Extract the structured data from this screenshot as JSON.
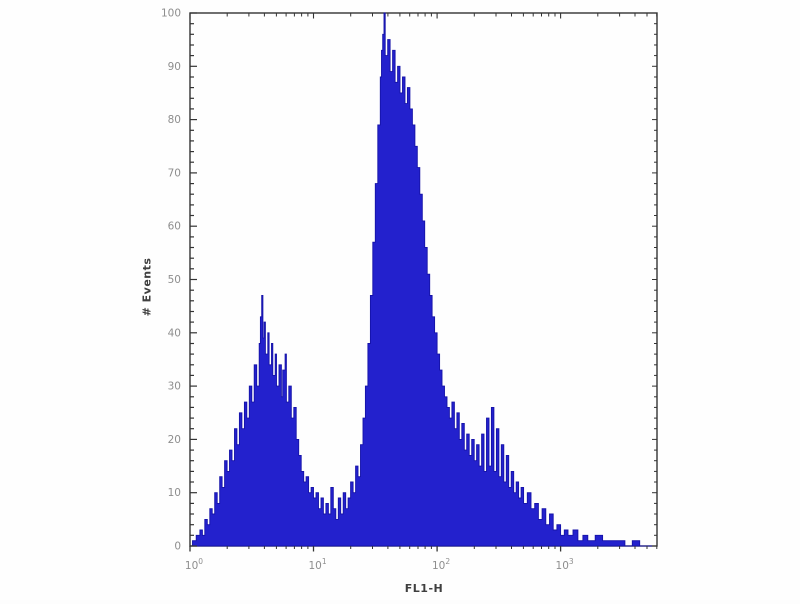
{
  "chart_data": {
    "type": "area",
    "subtype": "flow-cytometry-histogram",
    "title": "",
    "xlabel": "FL1-H",
    "ylabel": "# Events",
    "x_scale": "log",
    "x_range_decades": [
      0,
      3.78
    ],
    "x_ticks": [
      {
        "base": "10",
        "exp": "0",
        "decade": 0
      },
      {
        "base": "10",
        "exp": "1",
        "decade": 1
      },
      {
        "base": "10",
        "exp": "2",
        "decade": 2
      },
      {
        "base": "10",
        "exp": "3",
        "decade": 3
      }
    ],
    "ylim": [
      0,
      100
    ],
    "y_ticks": [
      0,
      10,
      20,
      30,
      40,
      50,
      60,
      70,
      80,
      90,
      100
    ],
    "y_minor_step": 2,
    "legend": null,
    "grid": false,
    "colors": {
      "fill": "#2321cd",
      "stroke": "#1512a8",
      "axis": "#333333",
      "tick_label": "#8e8e8e",
      "axis_title": "#3f3f3f",
      "background": "#fefefe"
    },
    "series": [
      {
        "name": "events",
        "peaks_note": "left peak ~3.8e0 height ~47, main peak ~3.7e1 height ~100 (spike), shoulder ~2.5e2 height ~25",
        "points": [
          [
            0.0,
            0
          ],
          [
            0.02,
            1
          ],
          [
            0.05,
            2
          ],
          [
            0.08,
            3
          ],
          [
            0.1,
            2
          ],
          [
            0.12,
            5
          ],
          [
            0.14,
            4
          ],
          [
            0.16,
            7
          ],
          [
            0.18,
            6
          ],
          [
            0.2,
            10
          ],
          [
            0.22,
            8
          ],
          [
            0.24,
            13
          ],
          [
            0.26,
            11
          ],
          [
            0.28,
            16
          ],
          [
            0.3,
            14
          ],
          [
            0.32,
            18
          ],
          [
            0.34,
            16
          ],
          [
            0.36,
            22
          ],
          [
            0.38,
            19
          ],
          [
            0.4,
            25
          ],
          [
            0.42,
            22
          ],
          [
            0.44,
            27
          ],
          [
            0.46,
            24
          ],
          [
            0.48,
            30
          ],
          [
            0.5,
            27
          ],
          [
            0.52,
            34
          ],
          [
            0.54,
            30
          ],
          [
            0.56,
            38
          ],
          [
            0.57,
            43
          ],
          [
            0.58,
            47
          ],
          [
            0.59,
            39
          ],
          [
            0.6,
            42
          ],
          [
            0.61,
            36
          ],
          [
            0.63,
            40
          ],
          [
            0.64,
            34
          ],
          [
            0.66,
            38
          ],
          [
            0.67,
            32
          ],
          [
            0.69,
            36
          ],
          [
            0.7,
            30
          ],
          [
            0.72,
            34
          ],
          [
            0.74,
            28
          ],
          [
            0.75,
            33
          ],
          [
            0.77,
            36
          ],
          [
            0.78,
            27
          ],
          [
            0.8,
            30
          ],
          [
            0.82,
            24
          ],
          [
            0.84,
            26
          ],
          [
            0.86,
            20
          ],
          [
            0.88,
            17
          ],
          [
            0.9,
            14
          ],
          [
            0.92,
            12
          ],
          [
            0.94,
            13
          ],
          [
            0.96,
            10
          ],
          [
            0.98,
            11
          ],
          [
            1.0,
            9
          ],
          [
            1.02,
            10
          ],
          [
            1.04,
            7
          ],
          [
            1.06,
            9
          ],
          [
            1.08,
            6
          ],
          [
            1.1,
            8
          ],
          [
            1.12,
            6
          ],
          [
            1.14,
            11
          ],
          [
            1.16,
            7
          ],
          [
            1.18,
            5
          ],
          [
            1.2,
            9
          ],
          [
            1.22,
            6
          ],
          [
            1.24,
            10
          ],
          [
            1.26,
            7
          ],
          [
            1.28,
            9
          ],
          [
            1.3,
            12
          ],
          [
            1.32,
            10
          ],
          [
            1.34,
            15
          ],
          [
            1.36,
            13
          ],
          [
            1.38,
            19
          ],
          [
            1.4,
            24
          ],
          [
            1.42,
            30
          ],
          [
            1.44,
            38
          ],
          [
            1.46,
            47
          ],
          [
            1.48,
            57
          ],
          [
            1.5,
            68
          ],
          [
            1.52,
            79
          ],
          [
            1.54,
            88
          ],
          [
            1.55,
            93
          ],
          [
            1.56,
            96
          ],
          [
            1.57,
            100
          ],
          [
            1.58,
            92
          ],
          [
            1.6,
            95
          ],
          [
            1.62,
            89
          ],
          [
            1.64,
            93
          ],
          [
            1.66,
            87
          ],
          [
            1.68,
            90
          ],
          [
            1.7,
            85
          ],
          [
            1.72,
            88
          ],
          [
            1.74,
            83
          ],
          [
            1.76,
            86
          ],
          [
            1.78,
            82
          ],
          [
            1.8,
            79
          ],
          [
            1.82,
            75
          ],
          [
            1.84,
            71
          ],
          [
            1.86,
            66
          ],
          [
            1.88,
            61
          ],
          [
            1.9,
            56
          ],
          [
            1.92,
            51
          ],
          [
            1.94,
            47
          ],
          [
            1.96,
            43
          ],
          [
            1.98,
            40
          ],
          [
            2.0,
            36
          ],
          [
            2.02,
            33
          ],
          [
            2.04,
            30
          ],
          [
            2.06,
            28
          ],
          [
            2.08,
            26
          ],
          [
            2.1,
            24
          ],
          [
            2.12,
            27
          ],
          [
            2.14,
            22
          ],
          [
            2.16,
            25
          ],
          [
            2.18,
            20
          ],
          [
            2.2,
            23
          ],
          [
            2.22,
            18
          ],
          [
            2.24,
            21
          ],
          [
            2.26,
            17
          ],
          [
            2.28,
            20
          ],
          [
            2.3,
            16
          ],
          [
            2.32,
            19
          ],
          [
            2.34,
            15
          ],
          [
            2.36,
            21
          ],
          [
            2.38,
            14
          ],
          [
            2.4,
            24
          ],
          [
            2.42,
            15
          ],
          [
            2.44,
            26
          ],
          [
            2.46,
            14
          ],
          [
            2.48,
            22
          ],
          [
            2.5,
            13
          ],
          [
            2.52,
            19
          ],
          [
            2.54,
            12
          ],
          [
            2.56,
            17
          ],
          [
            2.58,
            11
          ],
          [
            2.6,
            14
          ],
          [
            2.62,
            10
          ],
          [
            2.64,
            12
          ],
          [
            2.66,
            9
          ],
          [
            2.68,
            11
          ],
          [
            2.7,
            8
          ],
          [
            2.73,
            10
          ],
          [
            2.76,
            7
          ],
          [
            2.79,
            8
          ],
          [
            2.82,
            5
          ],
          [
            2.85,
            7
          ],
          [
            2.88,
            4
          ],
          [
            2.91,
            6
          ],
          [
            2.94,
            3
          ],
          [
            2.97,
            4
          ],
          [
            3.0,
            2
          ],
          [
            3.03,
            3
          ],
          [
            3.06,
            2
          ],
          [
            3.1,
            3
          ],
          [
            3.14,
            1
          ],
          [
            3.18,
            2
          ],
          [
            3.22,
            1
          ],
          [
            3.28,
            2
          ],
          [
            3.34,
            1
          ],
          [
            3.4,
            1
          ],
          [
            3.46,
            1
          ],
          [
            3.52,
            0
          ],
          [
            3.58,
            1
          ],
          [
            3.64,
            0
          ],
          [
            3.72,
            0
          ],
          [
            3.78,
            0
          ]
        ]
      }
    ]
  }
}
